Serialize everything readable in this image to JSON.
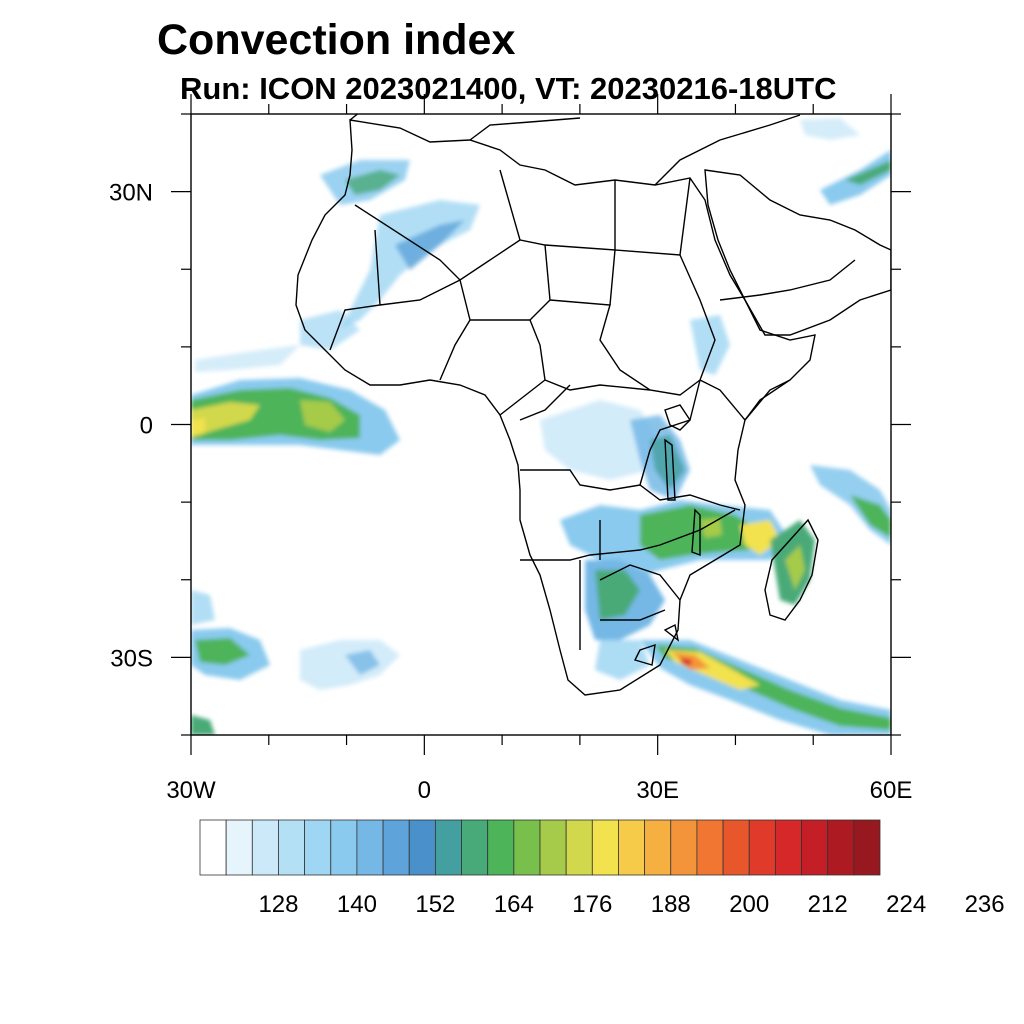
{
  "header": {
    "title": "Convection index",
    "subtitle": "Run: ICON 2023021400,  VT: 20230216-18UTC"
  },
  "map": {
    "lon_range": [
      -30,
      60
    ],
    "lat_range": [
      -40,
      40
    ],
    "x_ticks": [
      {
        "value": -30,
        "label": "30W"
      },
      {
        "value": 0,
        "label": "0"
      },
      {
        "value": 30,
        "label": "30E"
      },
      {
        "value": 60,
        "label": "60E"
      }
    ],
    "y_ticks": [
      {
        "value": 30,
        "label": "30N"
      },
      {
        "value": 0,
        "label": "0"
      },
      {
        "value": -30,
        "label": "30S"
      }
    ]
  },
  "colorbar": {
    "colors": [
      "#ffffff",
      "#e6f4fc",
      "#cbe9f8",
      "#b4e0f6",
      "#9fd6f3",
      "#8acaee",
      "#75b8e6",
      "#5ea4da",
      "#4a90ca",
      "#44a0a0",
      "#48aa78",
      "#4eb45a",
      "#78bf4c",
      "#a6cb4a",
      "#d2d84c",
      "#f2e24e",
      "#f7cb4a",
      "#f6b042",
      "#f4943a",
      "#f07632",
      "#e8572c",
      "#e03a2a",
      "#d62828",
      "#c41e26",
      "#ad1a22",
      "#981820"
    ],
    "labels": [
      "128",
      "140",
      "152",
      "164",
      "176",
      "188",
      "200",
      "212",
      "224",
      "236"
    ]
  }
}
